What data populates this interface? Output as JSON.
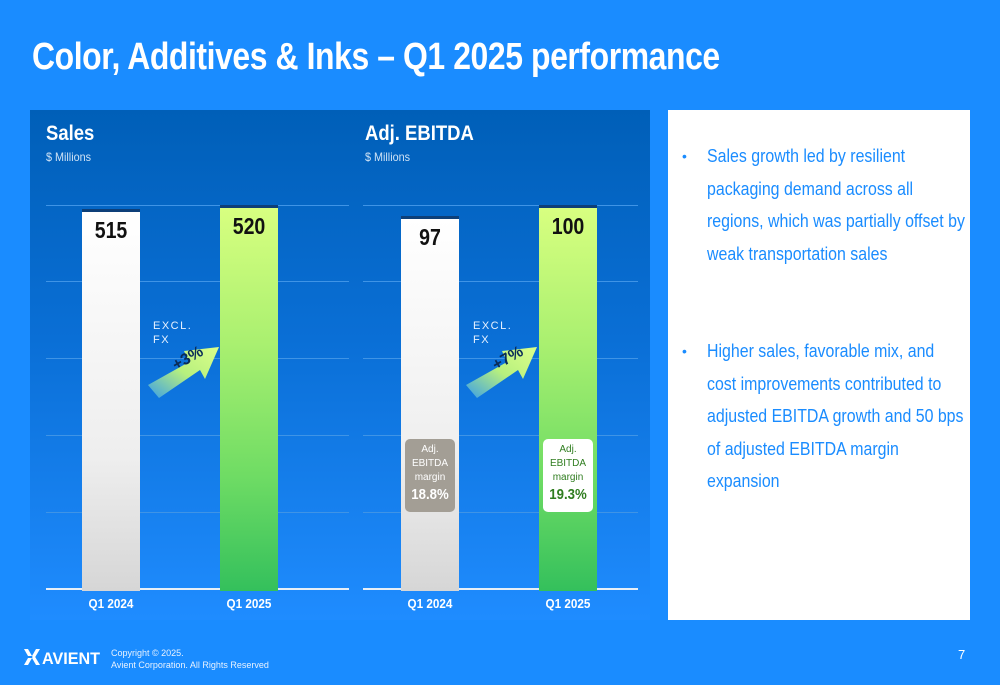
{
  "title": "Color, Additives & Inks – Q1 2025 performance",
  "colors": {
    "background": "#1a8cff",
    "white_bar": "#ffffff",
    "green_bar": "#7fe066",
    "bullet_text": "#1a8cff"
  },
  "chart_data": [
    {
      "type": "bar",
      "title": "Sales",
      "subtitle": "$ Millions",
      "categories": [
        "Q1 2024",
        "Q1 2025"
      ],
      "values": [
        515,
        520
      ],
      "ylim": [
        0,
        520
      ],
      "grid": true,
      "annotation": {
        "label": "EXCL.\nFX",
        "growth": "+3%"
      }
    },
    {
      "type": "bar",
      "title": "Adj. EBITDA",
      "subtitle": "$ Millions",
      "categories": [
        "Q1 2024",
        "Q1 2025"
      ],
      "values": [
        97,
        100
      ],
      "ylim": [
        0,
        100
      ],
      "grid": true,
      "annotation": {
        "label": "EXCL.\nFX",
        "growth": "+7%"
      },
      "margin_labels": [
        {
          "label": "Adj. EBITDA margin",
          "value": "18.8%"
        },
        {
          "label": "Adj. EBITDA margin",
          "value": "19.3%"
        }
      ]
    }
  ],
  "bullets": [
    "Sales growth led by resilient packaging demand across all regions, which was partially offset by weak transportation sales",
    "Higher sales, favorable mix, and cost improvements contributed to adjusted EBITDA growth and 50 bps of adjusted EBITDA margin expansion"
  ],
  "footer": {
    "logo_text": "AVIENT",
    "copyright_line1": "Copyright © 2025.",
    "copyright_line2": "Avient Corporation. All Rights Reserved",
    "page_number": "7"
  }
}
